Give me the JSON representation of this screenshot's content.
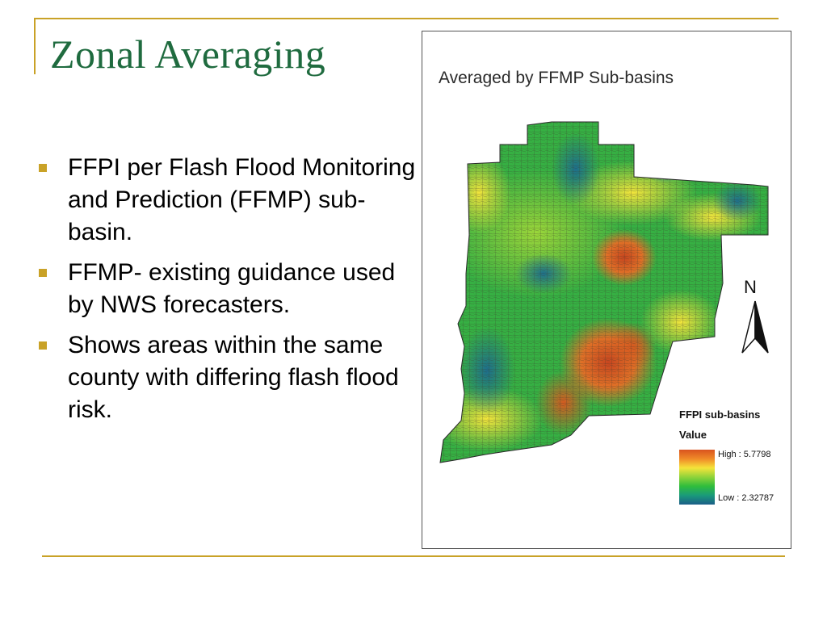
{
  "slide": {
    "title": "Zonal Averaging",
    "bullets": [
      "FFPI per Flash Flood Monitoring and Prediction (FFMP) sub-basin.",
      "FFMP- existing guidance used by NWS forecasters.",
      "Shows areas within the same county with differing flash flood risk."
    ],
    "accent_color": "#c9a227",
    "title_color": "#1f6b3f"
  },
  "map": {
    "title": "Averaged by FFMP Sub-basins",
    "north_label": "N",
    "legend": {
      "title": "FFPI sub-basins",
      "subtitle": "Value",
      "high_label": "High : 5.7798",
      "low_label": "Low : 2.32787",
      "high_value": 5.7798,
      "low_value": 2.32787,
      "ramp_colors": [
        "#d9531e",
        "#f08a28",
        "#f5e43a",
        "#8fd33a",
        "#2fbd3c",
        "#1a9a7a",
        "#1b5e88"
      ]
    }
  }
}
